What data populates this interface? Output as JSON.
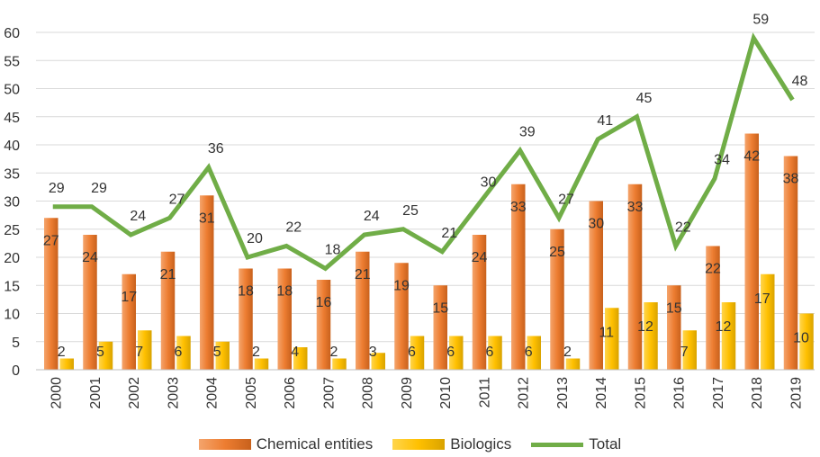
{
  "chart_data": {
    "type": "bar",
    "categories": [
      "2000",
      "2001",
      "2002",
      "2003",
      "2004",
      "2005",
      "2006",
      "2007",
      "2008",
      "2009",
      "2010",
      "2011",
      "2012",
      "2013",
      "2014",
      "2015",
      "2016",
      "2017",
      "2018",
      "2019"
    ],
    "series": [
      {
        "name": "Chemical entities",
        "type": "bar",
        "color": "#ED7D31",
        "values": [
          27,
          24,
          17,
          21,
          31,
          18,
          18,
          16,
          21,
          19,
          15,
          24,
          33,
          25,
          30,
          33,
          15,
          22,
          42,
          38
        ]
      },
      {
        "name": "Biologics",
        "type": "bar",
        "color": "#FFC000",
        "values": [
          2,
          5,
          7,
          6,
          5,
          2,
          4,
          2,
          3,
          6,
          6,
          6,
          6,
          2,
          11,
          12,
          7,
          12,
          17,
          10
        ]
      },
      {
        "name": "Total",
        "type": "line",
        "color": "#70AD47",
        "values": [
          29,
          29,
          24,
          27,
          36,
          20,
          22,
          18,
          24,
          25,
          21,
          30,
          39,
          27,
          41,
          45,
          22,
          34,
          59,
          48
        ]
      }
    ],
    "y_ticks": [
      "0",
      "5",
      "10",
      "15",
      "20",
      "25",
      "30",
      "35",
      "40",
      "45",
      "50",
      "55",
      "60"
    ],
    "ylim": [
      0,
      60
    ],
    "grid": "horizontal",
    "legend_position": "bottom",
    "title": "",
    "xlabel": "",
    "ylabel": ""
  },
  "legend": {
    "chemical": "Chemical entities",
    "biologics": "Biologics",
    "total": "Total"
  }
}
